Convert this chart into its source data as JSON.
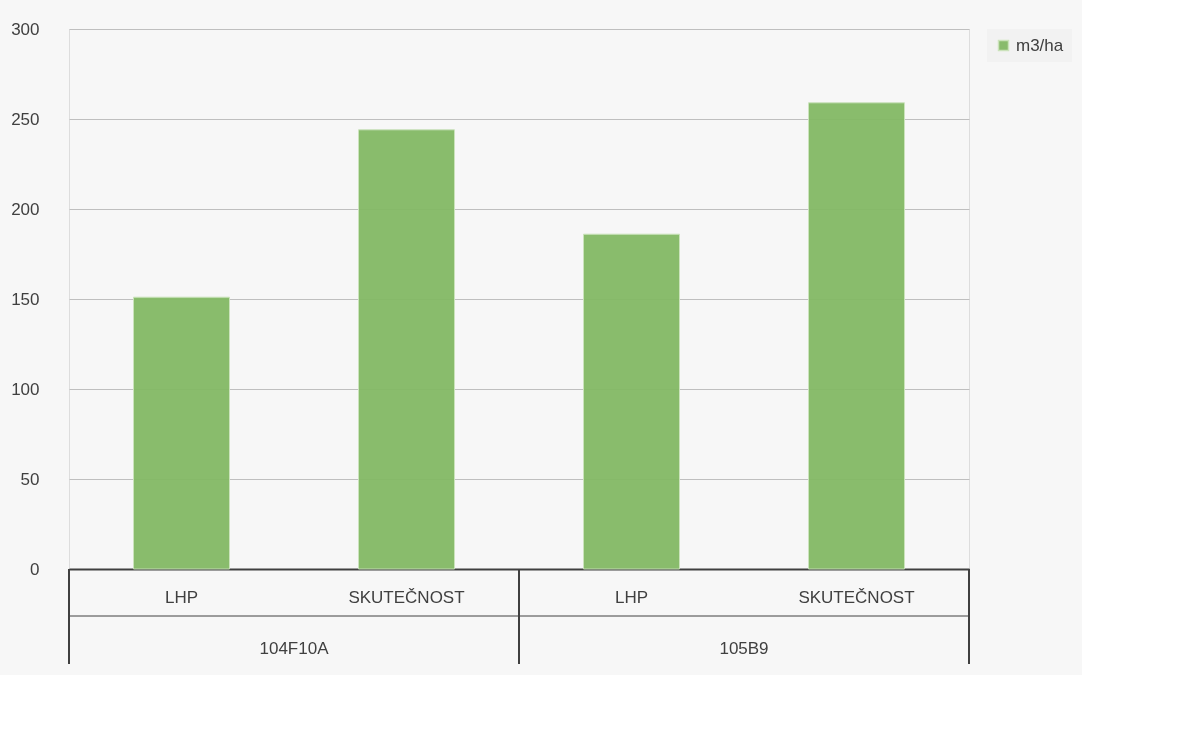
{
  "chart_data": {
    "type": "bar",
    "categories": [
      "LHP",
      "SKUTEČNOST",
      "LHP",
      "SKUTEČNOST"
    ],
    "series": [
      {
        "name": "m3/ha",
        "color": "#84b965",
        "values": [
          151,
          244,
          186,
          259
        ]
      }
    ],
    "annotations": [
      "104F10A",
      "105B9"
    ],
    "ylim": [
      0,
      300
    ],
    "yticks": [
      0,
      50,
      100,
      150,
      200,
      250,
      300
    ],
    "grid": "y",
    "legend": "right"
  }
}
